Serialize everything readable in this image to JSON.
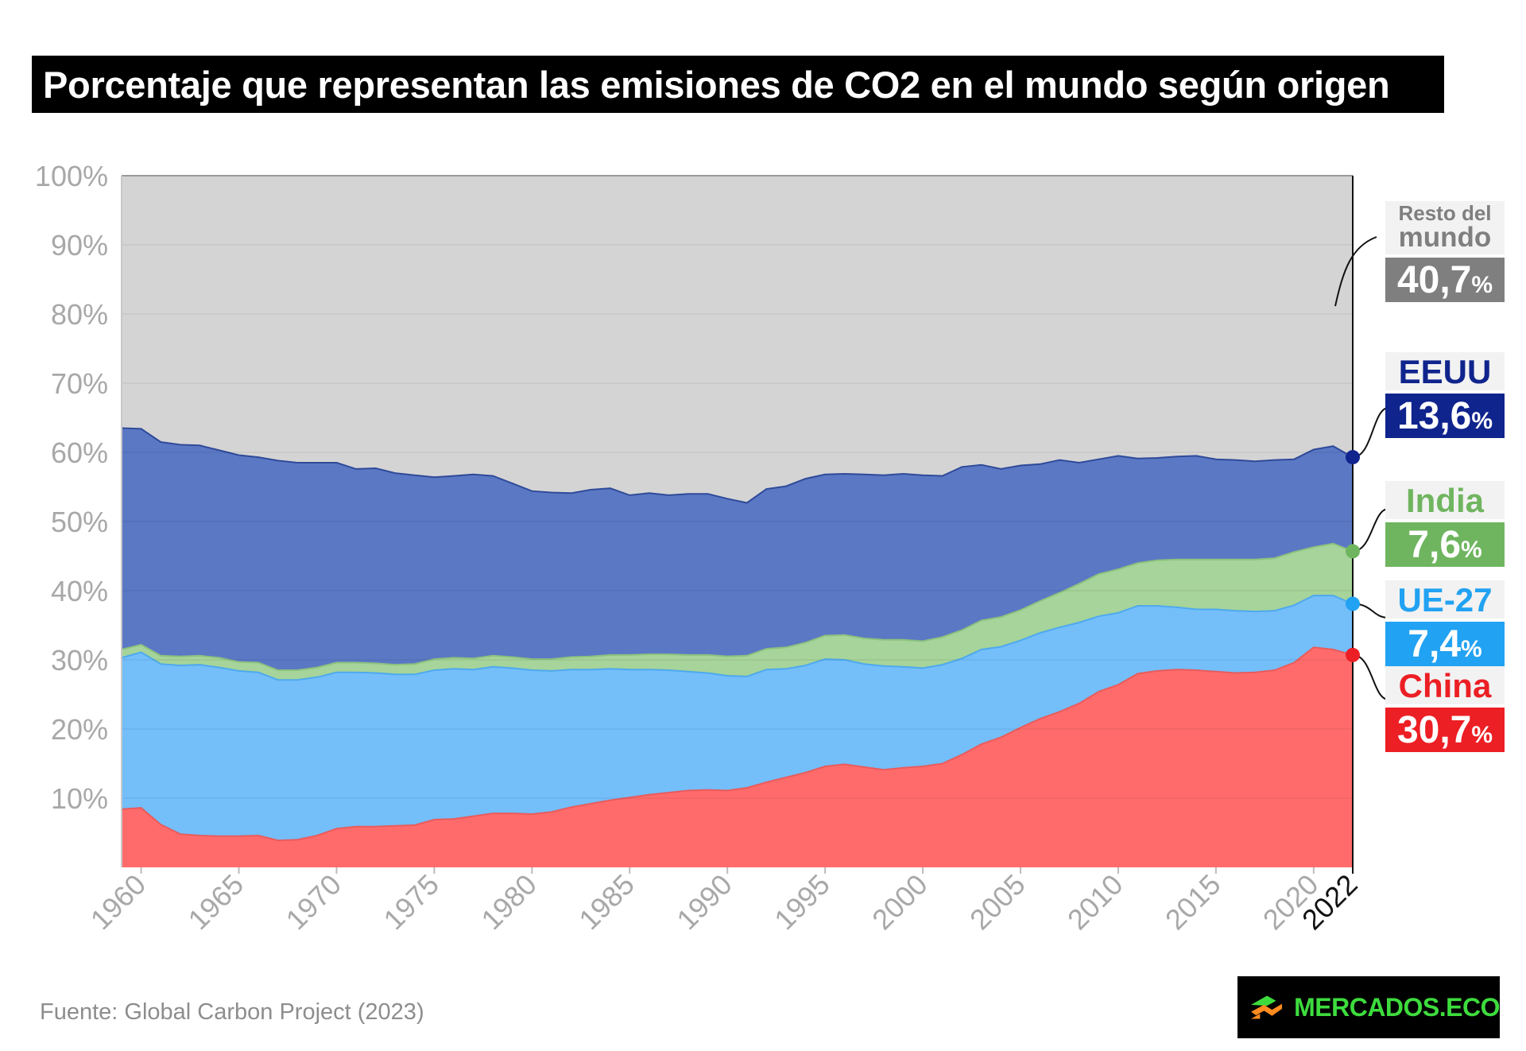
{
  "title": "Porcentaje que representan las emisiones de CO2 en el mundo según origen",
  "source": "Fuente: Global Carbon Project (2023)",
  "brand": "MERCADOS.ECO",
  "colors": {
    "china": "#ff6b6b",
    "ue27": "#74befa",
    "india": "#a6d49a",
    "eeuu": "#5b78c4",
    "resto": "#d4d4d4",
    "china_label": "#ec1f24",
    "ue27_label": "#22a2f2",
    "india_label": "#6fb55f",
    "eeuu_label": "#10248d",
    "resto_label": "#7f7f7f"
  },
  "labels": {
    "resto": {
      "name_1": "Resto del",
      "name_2": "mundo",
      "value": "40,7",
      "unit": "%"
    },
    "eeuu": {
      "name": "EEUU",
      "value": "13,6",
      "unit": "%"
    },
    "india": {
      "name": "India",
      "value": "7,6",
      "unit": "%"
    },
    "ue27": {
      "name": "UE-27",
      "value": "7,4",
      "unit": "%"
    },
    "china": {
      "name": "China",
      "value": "30,7",
      "unit": "%"
    }
  },
  "chart_data": {
    "type": "area",
    "stacked": true,
    "title": "Porcentaje que representan las emisiones de CO2 en el mundo según origen",
    "x": [
      1959,
      1960,
      1961,
      1962,
      1963,
      1964,
      1965,
      1966,
      1967,
      1968,
      1969,
      1970,
      1971,
      1972,
      1973,
      1974,
      1975,
      1976,
      1977,
      1978,
      1979,
      1980,
      1981,
      1982,
      1983,
      1984,
      1985,
      1986,
      1987,
      1988,
      1989,
      1990,
      1991,
      1992,
      1993,
      1994,
      1995,
      1996,
      1997,
      1998,
      1999,
      2000,
      2001,
      2002,
      2003,
      2004,
      2005,
      2006,
      2007,
      2008,
      2009,
      2010,
      2011,
      2012,
      2013,
      2014,
      2015,
      2016,
      2017,
      2018,
      2019,
      2020,
      2021,
      2022
    ],
    "x_ticks": [
      "1960",
      "1965",
      "1970",
      "1975",
      "1980",
      "1985",
      "1990",
      "1995",
      "2000",
      "2005",
      "2010",
      "2015",
      "2020",
      "2022"
    ],
    "y_ticks": [
      "10%",
      "20%",
      "30%",
      "40%",
      "50%",
      "60%",
      "70%",
      "80%",
      "90%",
      "100%"
    ],
    "ylim": [
      0,
      100
    ],
    "series": [
      {
        "name": "China",
        "values": [
          8.4,
          8.6,
          6.2,
          4.8,
          4.6,
          4.5,
          4.5,
          4.6,
          3.9,
          4.0,
          4.6,
          5.6,
          5.9,
          5.9,
          6.0,
          6.1,
          6.9,
          7.0,
          7.4,
          7.8,
          7.8,
          7.7,
          8.0,
          8.7,
          9.2,
          9.7,
          10.1,
          10.5,
          10.8,
          11.1,
          11.2,
          11.1,
          11.5,
          12.3,
          13.0,
          13.7,
          14.6,
          14.9,
          14.5,
          14.1,
          14.4,
          14.6,
          15.0,
          16.3,
          17.8,
          18.8,
          20.2,
          21.5,
          22.5,
          23.7,
          25.4,
          26.4,
          28.0,
          28.4,
          28.6,
          28.5,
          28.3,
          28.1,
          28.2,
          28.5,
          29.6,
          31.8,
          31.5,
          30.7
        ]
      },
      {
        "name": "UE-27",
        "values": [
          21.9,
          22.5,
          23.2,
          24.4,
          24.7,
          24.4,
          23.9,
          23.6,
          23.2,
          23.1,
          22.9,
          22.6,
          22.3,
          22.2,
          21.9,
          21.8,
          21.6,
          21.7,
          21.2,
          21.2,
          21.0,
          20.8,
          20.4,
          19.9,
          19.4,
          19.0,
          18.5,
          18.1,
          17.7,
          17.2,
          16.9,
          16.6,
          16.1,
          16.3,
          15.7,
          15.5,
          15.5,
          15.1,
          14.9,
          15.0,
          14.6,
          14.2,
          14.3,
          13.9,
          13.7,
          13.1,
          12.6,
          12.4,
          12.2,
          11.7,
          10.9,
          10.4,
          9.8,
          9.4,
          9.0,
          8.8,
          9.0,
          9.0,
          8.8,
          8.6,
          8.3,
          7.5,
          7.8,
          7.4
        ]
      },
      {
        "name": "India",
        "values": [
          1.2,
          1.1,
          1.2,
          1.3,
          1.3,
          1.4,
          1.3,
          1.4,
          1.4,
          1.4,
          1.4,
          1.4,
          1.4,
          1.4,
          1.4,
          1.5,
          1.6,
          1.6,
          1.6,
          1.6,
          1.6,
          1.6,
          1.7,
          1.8,
          1.9,
          2.0,
          2.1,
          2.2,
          2.3,
          2.4,
          2.6,
          2.8,
          3.0,
          3.0,
          3.1,
          3.3,
          3.4,
          3.6,
          3.7,
          3.8,
          3.9,
          3.9,
          4.0,
          4.1,
          4.2,
          4.3,
          4.4,
          4.6,
          5.0,
          5.6,
          6.1,
          6.3,
          6.2,
          6.6,
          6.9,
          7.2,
          7.2,
          7.4,
          7.5,
          7.6,
          7.7,
          7.0,
          7.5,
          7.6
        ]
      },
      {
        "name": "EEUU",
        "values": [
          32.0,
          31.2,
          30.9,
          30.6,
          30.4,
          30.0,
          29.9,
          29.7,
          30.3,
          30.0,
          29.6,
          28.9,
          28.0,
          28.2,
          27.7,
          27.3,
          26.3,
          26.3,
          26.6,
          26.0,
          25.1,
          24.3,
          24.1,
          23.7,
          24.1,
          24.1,
          23.1,
          23.3,
          23.0,
          23.3,
          23.3,
          22.8,
          22.1,
          23.1,
          23.3,
          23.7,
          23.3,
          23.3,
          23.7,
          23.8,
          24.0,
          24.0,
          23.3,
          23.6,
          22.5,
          21.4,
          20.9,
          19.8,
          19.2,
          17.5,
          16.6,
          16.4,
          15.1,
          14.8,
          14.9,
          15.0,
          14.5,
          14.4,
          14.2,
          14.2,
          13.4,
          14.1,
          14.1,
          13.6
        ]
      },
      {
        "name": "Resto del mundo",
        "values": [
          36.5,
          36.6,
          38.5,
          38.9,
          39.0,
          39.7,
          40.4,
          40.7,
          41.2,
          41.5,
          41.5,
          41.5,
          42.4,
          42.3,
          43.0,
          43.3,
          43.6,
          43.4,
          43.2,
          43.4,
          44.5,
          45.6,
          45.8,
          45.9,
          45.4,
          45.2,
          46.2,
          45.9,
          46.2,
          46.0,
          46.0,
          46.7,
          47.3,
          45.3,
          44.9,
          43.8,
          43.2,
          43.1,
          43.2,
          43.3,
          43.1,
          43.3,
          43.4,
          42.1,
          41.8,
          42.4,
          41.9,
          41.7,
          41.1,
          41.5,
          41.0,
          40.5,
          40.9,
          40.8,
          40.6,
          40.5,
          41.0,
          41.1,
          41.3,
          41.1,
          41.0,
          39.6,
          39.1,
          40.7
        ]
      }
    ],
    "end_labels": [
      {
        "name": "Resto del mundo",
        "value": 40.7
      },
      {
        "name": "EEUU",
        "value": 13.6
      },
      {
        "name": "India",
        "value": 7.6
      },
      {
        "name": "UE-27",
        "value": 7.4
      },
      {
        "name": "China",
        "value": 30.7
      }
    ],
    "grid": true
  }
}
